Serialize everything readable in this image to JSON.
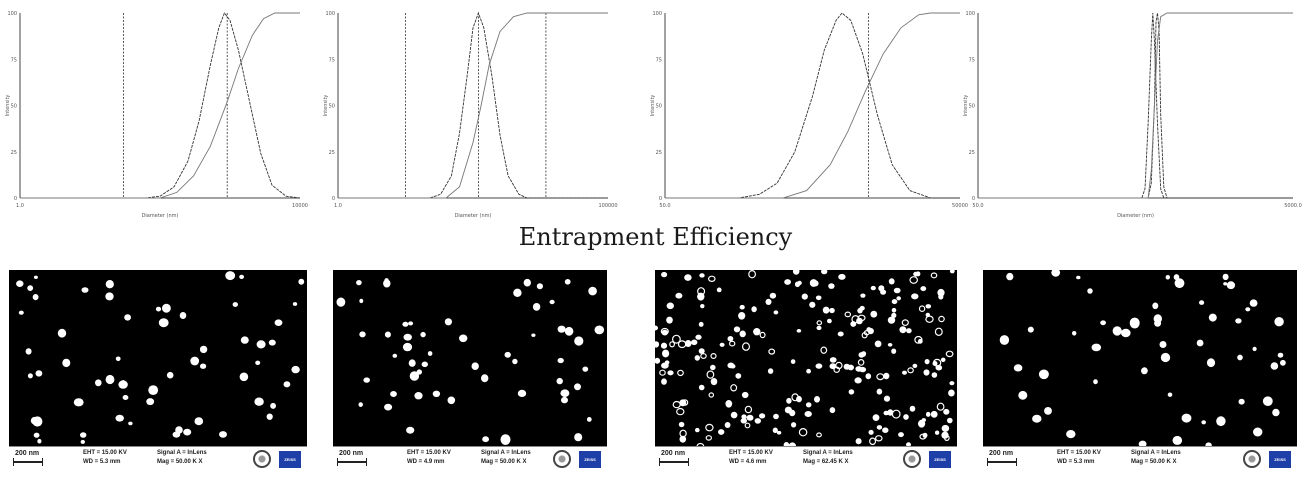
{
  "caption": "Entrapment Efficiency",
  "chart_data": [
    {
      "type": "line",
      "xlabel": "Diameter (nm)",
      "ylabel": "Intensity",
      "xtick_labels": [
        "1.0",
        "10000"
      ],
      "ytick_labels": [
        "0",
        "25",
        "50",
        "75",
        "100"
      ],
      "ylim": [
        0,
        100
      ],
      "series": [
        {
          "kind": "distribution",
          "points": [
            [
              0.0,
              0
            ],
            [
              0.45,
              0
            ],
            [
              0.5,
              1
            ],
            [
              0.55,
              6
            ],
            [
              0.6,
              20
            ],
            [
              0.64,
              42
            ],
            [
              0.68,
              72
            ],
            [
              0.71,
              92
            ],
            [
              0.73,
              100
            ],
            [
              0.75,
              96
            ],
            [
              0.78,
              80
            ],
            [
              0.82,
              52
            ],
            [
              0.86,
              24
            ],
            [
              0.9,
              7
            ],
            [
              0.95,
              1
            ],
            [
              1.0,
              0
            ]
          ]
        },
        {
          "kind": "cumulative",
          "points": [
            [
              0.0,
              0
            ],
            [
              0.5,
              0
            ],
            [
              0.56,
              3
            ],
            [
              0.62,
              12
            ],
            [
              0.68,
              28
            ],
            [
              0.74,
              52
            ],
            [
              0.78,
              70
            ],
            [
              0.83,
              88
            ],
            [
              0.87,
              97
            ],
            [
              0.91,
              100
            ],
            [
              1.0,
              100
            ]
          ]
        }
      ],
      "vlines": [
        0.37,
        0.74
      ]
    },
    {
      "type": "line",
      "xlabel": "Diameter (nm)",
      "ylabel": "Intensity",
      "xtick_labels": [
        "1.0",
        "100000"
      ],
      "ytick_labels": [
        "0",
        "25",
        "50",
        "75",
        "100"
      ],
      "ylim": [
        0,
        100
      ],
      "series": [
        {
          "kind": "distribution",
          "points": [
            [
              0.0,
              0
            ],
            [
              0.34,
              0
            ],
            [
              0.38,
              2
            ],
            [
              0.42,
              12
            ],
            [
              0.45,
              35
            ],
            [
              0.48,
              68
            ],
            [
              0.5,
              92
            ],
            [
              0.52,
              100
            ],
            [
              0.54,
              92
            ],
            [
              0.57,
              66
            ],
            [
              0.6,
              34
            ],
            [
              0.63,
              12
            ],
            [
              0.67,
              2
            ],
            [
              0.7,
              0
            ],
            [
              1.0,
              0
            ]
          ]
        },
        {
          "kind": "cumulative",
          "points": [
            [
              0.0,
              0
            ],
            [
              0.4,
              0
            ],
            [
              0.45,
              6
            ],
            [
              0.5,
              30
            ],
            [
              0.53,
              50
            ],
            [
              0.56,
              72
            ],
            [
              0.6,
              90
            ],
            [
              0.65,
              98
            ],
            [
              0.7,
              100
            ],
            [
              1.0,
              100
            ]
          ]
        }
      ],
      "vlines": [
        0.25,
        0.52,
        0.77
      ]
    },
    {
      "type": "line",
      "xlabel": "",
      "ylabel": "Intensity",
      "xtick_labels": [
        "50.0",
        "50000"
      ],
      "ytick_labels": [
        "0",
        "25",
        "50",
        "75",
        "100"
      ],
      "ylim": [
        0,
        100
      ],
      "series": [
        {
          "kind": "distribution",
          "points": [
            [
              0.0,
              0
            ],
            [
              0.25,
              0
            ],
            [
              0.32,
              2
            ],
            [
              0.38,
              8
            ],
            [
              0.44,
              25
            ],
            [
              0.5,
              55
            ],
            [
              0.54,
              80
            ],
            [
              0.58,
              96
            ],
            [
              0.6,
              100
            ],
            [
              0.63,
              96
            ],
            [
              0.67,
              78
            ],
            [
              0.72,
              45
            ],
            [
              0.77,
              18
            ],
            [
              0.83,
              4
            ],
            [
              0.9,
              0
            ],
            [
              1.0,
              0
            ]
          ]
        },
        {
          "kind": "cumulative",
          "points": [
            [
              0.0,
              0
            ],
            [
              0.4,
              0
            ],
            [
              0.48,
              4
            ],
            [
              0.56,
              18
            ],
            [
              0.62,
              36
            ],
            [
              0.68,
              58
            ],
            [
              0.74,
              78
            ],
            [
              0.8,
              92
            ],
            [
              0.86,
              99
            ],
            [
              0.9,
              100
            ],
            [
              1.0,
              100
            ]
          ]
        }
      ],
      "vlines": [
        0.69
      ]
    },
    {
      "type": "line",
      "xlabel": "Diameter (nm)",
      "ylabel": "Intensity",
      "xtick_labels": [
        "50.0",
        "5000.0"
      ],
      "ytick_labels": [
        "0",
        "25",
        "50",
        "75",
        "100"
      ],
      "ylim": [
        0,
        100
      ],
      "series": [
        {
          "kind": "distribution",
          "points": [
            [
              0.0,
              0
            ],
            [
              0.52,
              0
            ],
            [
              0.53,
              5
            ],
            [
              0.54,
              40
            ],
            [
              0.55,
              85
            ],
            [
              0.555,
              100
            ],
            [
              0.56,
              85
            ],
            [
              0.57,
              40
            ],
            [
              0.58,
              5
            ],
            [
              0.59,
              0
            ],
            [
              1.0,
              0
            ]
          ]
        },
        {
          "kind": "distribution-2",
          "points": [
            [
              0.0,
              0
            ],
            [
              0.54,
              0
            ],
            [
              0.55,
              8
            ],
            [
              0.56,
              50
            ],
            [
              0.565,
              95
            ],
            [
              0.57,
              100
            ],
            [
              0.575,
              90
            ],
            [
              0.58,
              45
            ],
            [
              0.59,
              6
            ],
            [
              0.6,
              0
            ],
            [
              1.0,
              0
            ]
          ]
        },
        {
          "kind": "cumulative",
          "points": [
            [
              0.0,
              0
            ],
            [
              0.54,
              0
            ],
            [
              0.55,
              15
            ],
            [
              0.56,
              50
            ],
            [
              0.57,
              85
            ],
            [
              0.58,
              98
            ],
            [
              0.6,
              100
            ],
            [
              1.0,
              100
            ]
          ]
        }
      ],
      "vlines": []
    }
  ],
  "sem_images": [
    {
      "scale": "200 nm",
      "eht": "EHT = 15.00 KV",
      "wd": "WD = 5.3 mm",
      "signal": "Signal A = InLens",
      "mag": "Mag = 50.00 K X",
      "logo": "ZEISS"
    },
    {
      "scale": "200 nm",
      "eht": "EHT = 15.00 KV",
      "wd": "WD = 4.9 mm",
      "signal": "Signal A = InLens",
      "mag": "Mag = 50.00 K X",
      "logo": "ZEISS"
    },
    {
      "scale": "200 nm",
      "eht": "EHT = 15.00 KV",
      "wd": "WD = 4.6 mm",
      "signal": "Signal A = InLens",
      "mag": "Mag = 62.45 K X",
      "logo": "ZEISS"
    },
    {
      "scale": "200 nm",
      "eht": "EHT = 15.00 KV",
      "wd": "WD = 5.3 mm",
      "signal": "Signal A = InLens",
      "mag": "Mag = 50.00 K X",
      "logo": "ZEISS"
    }
  ]
}
